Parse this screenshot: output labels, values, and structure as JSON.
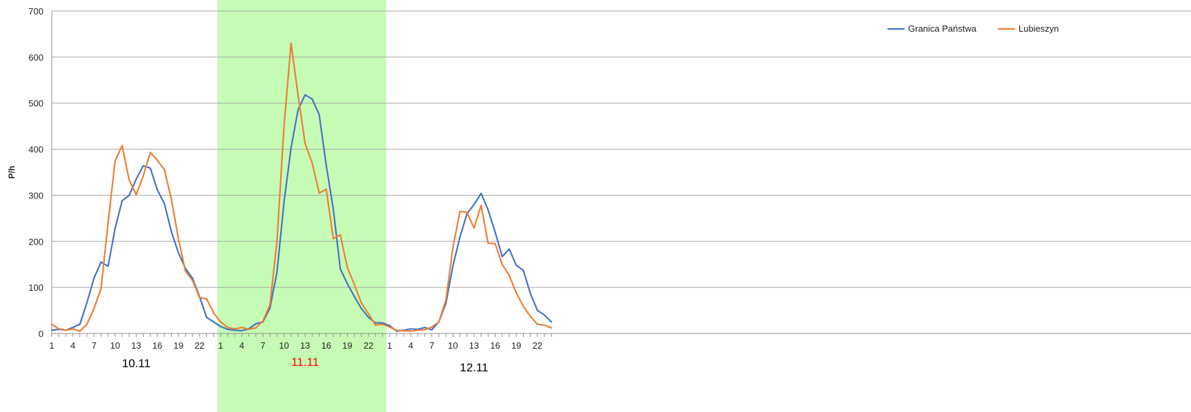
{
  "chart_data": {
    "type": "line",
    "ylabel": "P/h",
    "ylim": [
      0,
      700
    ],
    "yticks": [
      0,
      100,
      200,
      300,
      400,
      500,
      600,
      700
    ],
    "grid": true,
    "legend_position": "top-right",
    "x": [
      1,
      2,
      3,
      4,
      5,
      6,
      7,
      8,
      9,
      10,
      11,
      12,
      13,
      14,
      15,
      16,
      17,
      18,
      19,
      20,
      21,
      22,
      23,
      24,
      1,
      2,
      3,
      4,
      5,
      6,
      7,
      8,
      9,
      10,
      11,
      12,
      13,
      14,
      15,
      16,
      17,
      18,
      19,
      20,
      21,
      22,
      23,
      24,
      1,
      2,
      3,
      4,
      5,
      6,
      7,
      8,
      9,
      10,
      11,
      12,
      13,
      14,
      15,
      16,
      17,
      18,
      19,
      20,
      21,
      22,
      23,
      24
    ],
    "x_tick_labels": [
      "1",
      "4",
      "7",
      "10",
      "13",
      "16",
      "19",
      "22",
      "1",
      "4",
      "7",
      "10",
      "13",
      "16",
      "19",
      "22",
      "1",
      "4",
      "7",
      "10",
      "13",
      "16",
      "19",
      "22"
    ],
    "days": [
      {
        "label": "10.11",
        "highlighted": false
      },
      {
        "label": "11.11",
        "highlighted": true
      },
      {
        "label": "12.11",
        "highlighted": false
      }
    ],
    "highlight_color": "#c6fbb6",
    "series": [
      {
        "name": "Granica Państwa",
        "color": "#4472c4",
        "values": [
          7,
          9,
          7,
          13,
          20,
          67,
          120,
          155,
          146,
          228,
          288,
          300,
          335,
          364,
          359,
          312,
          282,
          221,
          175,
          141,
          120,
          80,
          35,
          25,
          15,
          9,
          7,
          6,
          10,
          21,
          25,
          55,
          133,
          285,
          403,
          486,
          518,
          509,
          475,
          365,
          270,
          140,
          108,
          80,
          54,
          35,
          23,
          23,
          17,
          5,
          7,
          10,
          9,
          13,
          8,
          25,
          65,
          147,
          210,
          260,
          280,
          304,
          268,
          220,
          167,
          183,
          148,
          137,
          87,
          50,
          40,
          25
        ]
      },
      {
        "name": "Lubieszyn",
        "color": "#ed7d31",
        "values": [
          20,
          10,
          7,
          10,
          5,
          20,
          54,
          97,
          240,
          374,
          408,
          333,
          301,
          342,
          393,
          376,
          356,
          291,
          205,
          135,
          115,
          78,
          75,
          45,
          25,
          13,
          10,
          13,
          9,
          12,
          27,
          62,
          200,
          450,
          630,
          517,
          412,
          370,
          305,
          313,
          206,
          214,
          143,
          106,
          66,
          43,
          18,
          20,
          14,
          7,
          6,
          5,
          7,
          8,
          14,
          25,
          72,
          187,
          265,
          263,
          229,
          278,
          196,
          195,
          150,
          126,
          88,
          59,
          37,
          20,
          18,
          12
        ]
      }
    ]
  }
}
